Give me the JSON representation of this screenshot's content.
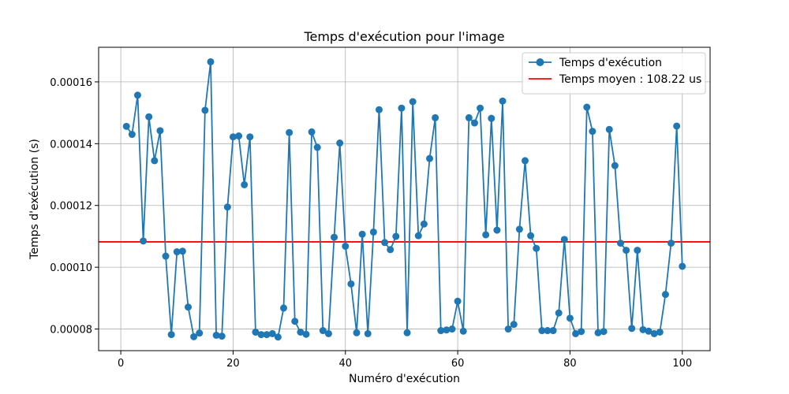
{
  "chart_data": {
    "type": "line",
    "title": "Temps d'exécution pour l'image",
    "xlabel": "Numéro d'exécution",
    "ylabel": "Temps d'exécution (s)",
    "xlim": [
      -3.95,
      104.95
    ],
    "ylim": [
      7.3e-05,
      0.0001712
    ],
    "xticks": [
      0,
      20,
      40,
      60,
      80,
      100
    ],
    "xtick_labels": [
      "0",
      "20",
      "40",
      "60",
      "80",
      "100"
    ],
    "yticks": [
      8e-05,
      0.0001,
      0.00012,
      0.00014,
      0.00016
    ],
    "ytick_labels": [
      "0.00008",
      "0.00010",
      "0.00012",
      "0.00014",
      "0.00016"
    ],
    "grid": true,
    "legend_position": "top-right",
    "series": [
      {
        "name": "Temps d'exécution",
        "color": "#1f77b4",
        "marker": "circle",
        "x": [
          1,
          2,
          3,
          4,
          5,
          6,
          7,
          8,
          9,
          10,
          11,
          12,
          13,
          14,
          15,
          16,
          17,
          18,
          19,
          20,
          21,
          22,
          23,
          24,
          25,
          26,
          27,
          28,
          29,
          30,
          31,
          32,
          33,
          34,
          35,
          36,
          37,
          38,
          39,
          40,
          41,
          42,
          43,
          44,
          45,
          46,
          47,
          48,
          49,
          50,
          51,
          52,
          53,
          54,
          55,
          56,
          57,
          58,
          59,
          60,
          61,
          62,
          63,
          64,
          65,
          66,
          67,
          68,
          69,
          70,
          71,
          72,
          73,
          74,
          75,
          76,
          77,
          78,
          79,
          80,
          81,
          82,
          83,
          84,
          85,
          86,
          87,
          88,
          89,
          90,
          91,
          92,
          93,
          94,
          95,
          96,
          97,
          98,
          99,
          100
        ],
        "y": [
          0.0001456,
          0.000143,
          0.0001557,
          0.0001085,
          0.0001487,
          0.0001345,
          0.0001442,
          0.0001036,
          7.82e-05,
          0.000105,
          0.0001052,
          8.71e-05,
          7.75e-05,
          7.87e-05,
          0.0001508,
          0.0001665,
          7.8e-05,
          7.77e-05,
          0.0001195,
          0.0001422,
          0.0001425,
          0.0001267,
          0.0001422,
          7.9e-05,
          7.82e-05,
          7.82e-05,
          7.85e-05,
          7.74e-05,
          8.68e-05,
          0.0001436,
          8.25e-05,
          7.9e-05,
          7.83e-05,
          0.0001438,
          0.0001388,
          7.95e-05,
          7.85e-05,
          0.0001097,
          0.0001402,
          0.0001068,
          9.46e-05,
          7.88e-05,
          0.0001107,
          7.85e-05,
          0.0001114,
          0.000151,
          0.000108,
          0.0001057,
          0.00011,
          0.0001515,
          7.88e-05,
          0.0001536,
          0.0001102,
          0.000114,
          0.0001352,
          0.0001484,
          7.95e-05,
          7.97e-05,
          8e-05,
          8.9e-05,
          7.93e-05,
          0.0001484,
          0.0001467,
          0.0001515,
          0.0001105,
          0.0001482,
          0.000112,
          0.0001538,
          8e-05,
          8.15e-05,
          0.0001123,
          0.0001345,
          0.0001102,
          0.0001061,
          7.95e-05,
          7.95e-05,
          7.95e-05,
          8.52e-05,
          0.000109,
          8.35e-05,
          7.85e-05,
          7.92e-05,
          0.0001518,
          0.000144,
          7.88e-05,
          7.92e-05,
          0.0001446,
          0.0001329,
          0.0001078,
          0.0001055,
          8.02e-05,
          0.0001055,
          7.98e-05,
          7.93e-05,
          7.85e-05,
          7.9e-05,
          9.12e-05,
          0.0001078,
          0.0001457,
          0.0001003
        ]
      }
    ],
    "hlines": [
      {
        "name": "Temps moyen : 108.22 us",
        "color": "#ff0000",
        "y": 0.00010822
      }
    ]
  }
}
